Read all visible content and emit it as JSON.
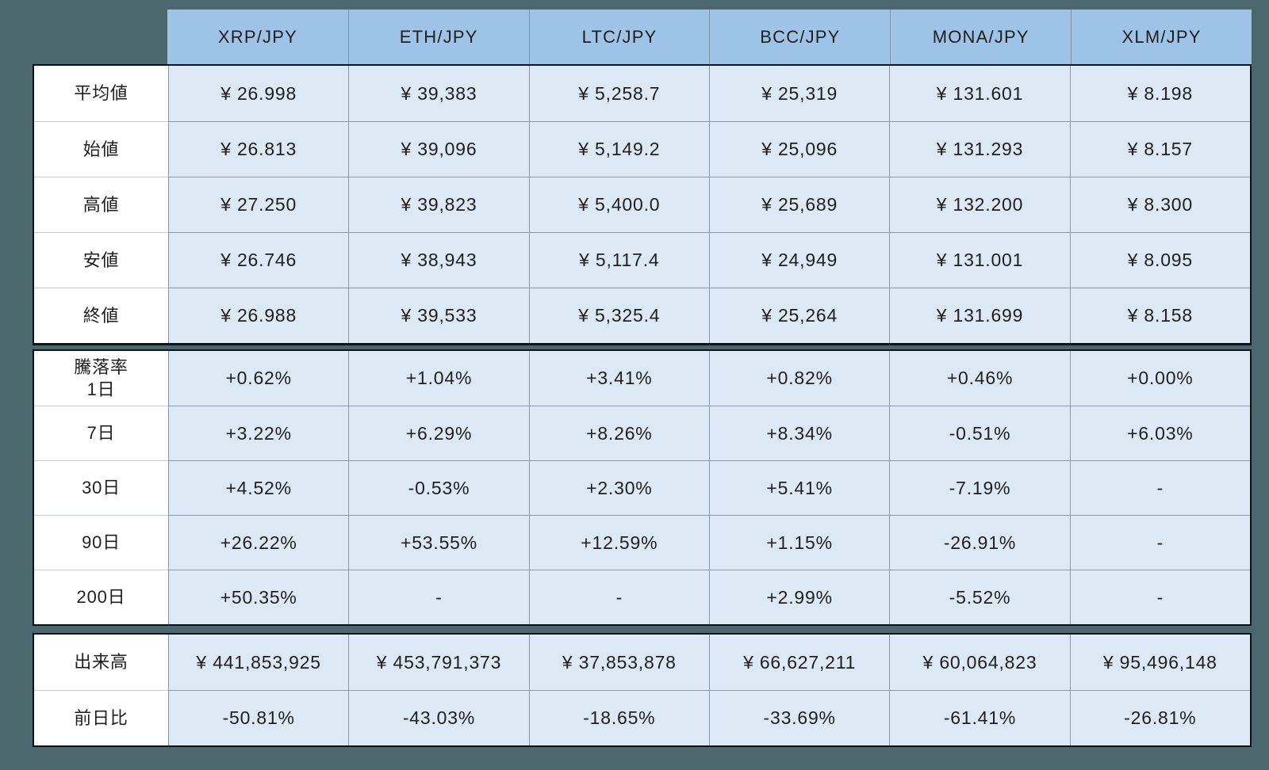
{
  "colors": {
    "page_background": "#4C666E",
    "header_fill": "#9DC3E6",
    "data_cell_fill": "#DCE8F4",
    "label_cell_fill": "#FFFFFF",
    "block_border": "#0D1214",
    "grid_line": "#8799A9",
    "text": "#1F1F1F"
  },
  "chart_data": {
    "type": "table",
    "columns": [
      "XRP/JPY",
      "ETH/JPY",
      "LTC/JPY",
      "BCC/JPY",
      "MONA/JPY",
      "XLM/JPY"
    ],
    "sections": [
      {
        "name": "prices",
        "rows": [
          {
            "label": "平均値",
            "values": [
              "¥ 26.998",
              "¥ 39,383",
              "¥ 5,258.7",
              "¥ 25,319",
              "¥ 131.601",
              "¥ 8.198"
            ]
          },
          {
            "label": "始値",
            "values": [
              "¥ 26.813",
              "¥ 39,096",
              "¥ 5,149.2",
              "¥ 25,096",
              "¥ 131.293",
              "¥ 8.157"
            ]
          },
          {
            "label": "高値",
            "values": [
              "¥ 27.250",
              "¥ 39,823",
              "¥ 5,400.0",
              "¥ 25,689",
              "¥ 132.200",
              "¥ 8.300"
            ]
          },
          {
            "label": "安値",
            "values": [
              "¥ 26.746",
              "¥ 38,943",
              "¥ 5,117.4",
              "¥ 24,949",
              "¥ 131.001",
              "¥ 8.095"
            ]
          },
          {
            "label": "終値",
            "values": [
              "¥ 26.988",
              "¥ 39,533",
              "¥ 5,325.4",
              "¥ 25,264",
              "¥ 131.699",
              "¥ 8.158"
            ]
          }
        ]
      },
      {
        "name": "change_rates",
        "rows": [
          {
            "label": "騰落率\n1日",
            "values": [
              "+0.62%",
              "+1.04%",
              "+3.41%",
              "+0.82%",
              "+0.46%",
              "+0.00%"
            ]
          },
          {
            "label": "7日",
            "values": [
              "+3.22%",
              "+6.29%",
              "+8.26%",
              "+8.34%",
              "-0.51%",
              "+6.03%"
            ]
          },
          {
            "label": "30日",
            "values": [
              "+4.52%",
              "-0.53%",
              "+2.30%",
              "+5.41%",
              "-7.19%",
              "-"
            ]
          },
          {
            "label": "90日",
            "values": [
              "+26.22%",
              "+53.55%",
              "+12.59%",
              "+1.15%",
              "-26.91%",
              "-"
            ]
          },
          {
            "label": "200日",
            "values": [
              "+50.35%",
              "-",
              "-",
              "+2.99%",
              "-5.52%",
              "-"
            ]
          }
        ]
      },
      {
        "name": "volume",
        "rows": [
          {
            "label": "出来高",
            "values": [
              "¥ 441,853,925",
              "¥ 453,791,373",
              "¥ 37,853,878",
              "¥ 66,627,211",
              "¥ 60,064,823",
              "¥ 95,496,148"
            ]
          },
          {
            "label": "前日比",
            "values": [
              "-50.81%",
              "-43.03%",
              "-18.65%",
              "-33.69%",
              "-61.41%",
              "-26.81%"
            ]
          }
        ]
      }
    ]
  }
}
